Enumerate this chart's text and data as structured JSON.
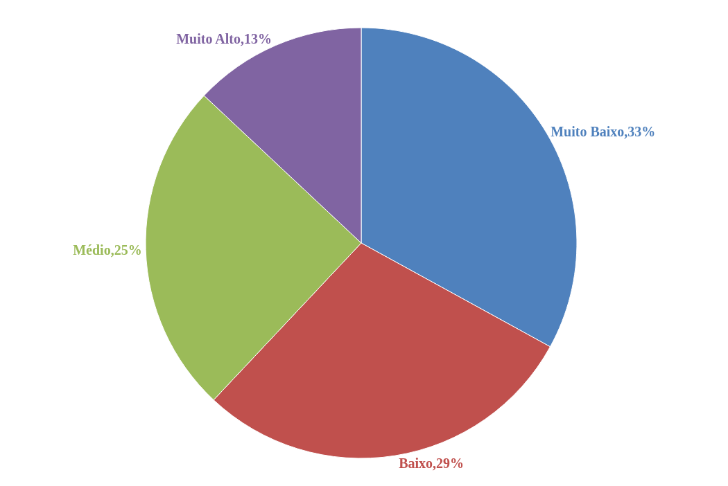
{
  "chart_data": {
    "type": "pie",
    "categories": [
      "Muito Baixo",
      "Baixo",
      "Médio",
      "Muito Alto"
    ],
    "values": [
      33,
      29,
      25,
      13
    ],
    "value_labels": [
      "33%",
      "29%",
      "25%",
      "13%"
    ],
    "colors": [
      "#4f81bd",
      "#c0504d",
      "#9bbb59",
      "#8064a2"
    ],
    "legend": false
  }
}
